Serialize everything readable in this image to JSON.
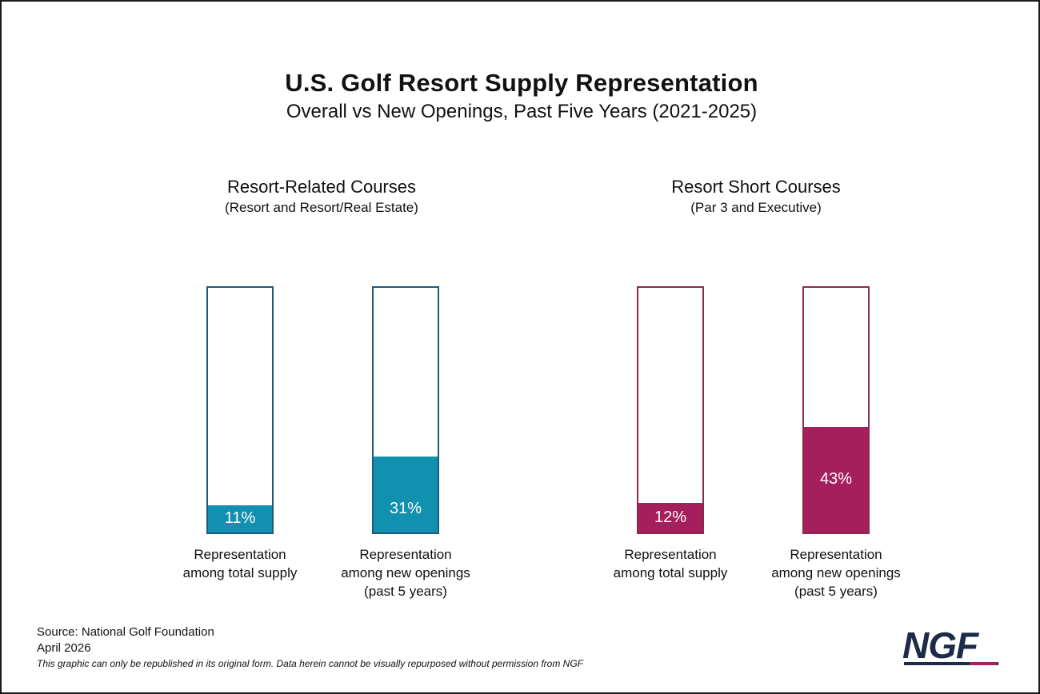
{
  "chart_data": {
    "type": "bar",
    "title": "U.S. Golf Resort Supply Representation",
    "subtitle": "Overall vs New Openings, Past Five Years (2021-2025)",
    "unit": "%",
    "ylim": [
      0,
      100
    ],
    "groups": [
      {
        "title": "Resort-Related Courses",
        "subtitle": "(Resort and Resort/Real Estate)",
        "color": "#1190b0",
        "border_color": "#1f5b7a",
        "bars": [
          {
            "value": 11,
            "label": "11%",
            "caption": [
              "Representation",
              "among total supply"
            ]
          },
          {
            "value": 31,
            "label": "31%",
            "caption": [
              "Representation",
              "among new openings",
              "(past 5 years)"
            ]
          }
        ]
      },
      {
        "title": "Resort Short Courses",
        "subtitle": "(Par 3 and Executive)",
        "color": "#a51f5c",
        "border_color": "#8a2b4b",
        "bars": [
          {
            "value": 12,
            "label": "12%",
            "caption": [
              "Representation",
              "among total supply"
            ]
          },
          {
            "value": 43,
            "label": "43%",
            "caption": [
              "Representation",
              "among new openings",
              "(past 5 years)"
            ]
          }
        ]
      }
    ]
  },
  "footer": {
    "source": "Source: National Golf Foundation",
    "date": "April 2026",
    "note": "This graphic can only be republished in its original form. Data herein cannot be visually repurposed without permission from NGF"
  },
  "logo": {
    "text": "NGF",
    "color": "#1e2a4a",
    "accent": "#a51f5c"
  }
}
